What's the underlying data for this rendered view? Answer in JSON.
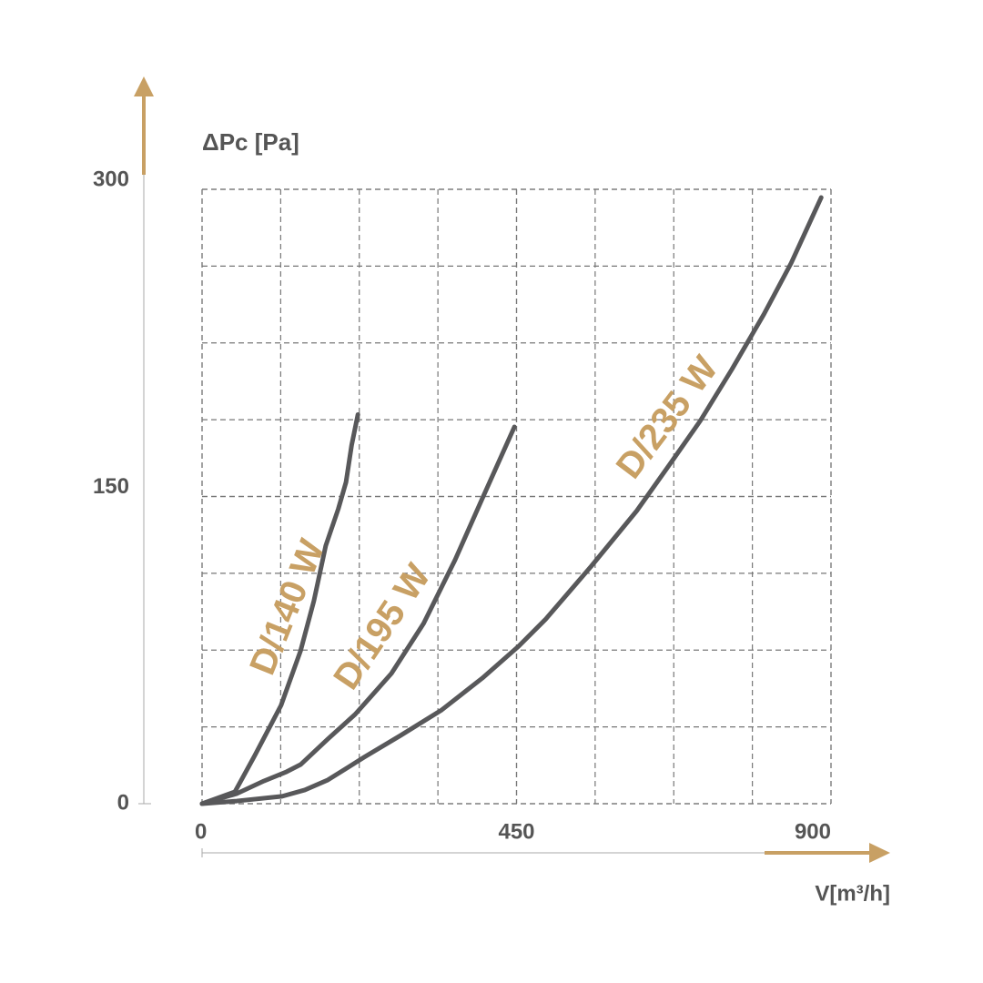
{
  "chart_data": {
    "type": "line",
    "y_label": "ΔPc [Pa]",
    "x_label": "V[m³/h]",
    "xlim": [
      0,
      900
    ],
    "xticks": [
      0,
      450,
      900
    ],
    "ylim": [
      0,
      300
    ],
    "yticks": [
      0,
      150,
      300
    ],
    "grid": true,
    "series": [
      {
        "name": "D/140 W",
        "color": "#58585a",
        "x": [
          0,
          47,
          75.5,
          113,
          141,
          160,
          177,
          195,
          206,
          214,
          223
        ],
        "values": [
          0,
          5.8,
          23.6,
          48,
          74.7,
          99,
          126,
          144,
          157,
          175,
          190
        ]
      },
      {
        "name": "D/195 W",
        "color": "#58585a",
        "x": [
          0,
          49.5,
          88.6,
          121,
          141,
          180,
          219,
          271,
          317,
          362,
          401,
          447
        ],
        "values": [
          0,
          4.9,
          11.1,
          15.6,
          19.1,
          31.6,
          43.6,
          63.6,
          88,
          119,
          149,
          184
        ]
      },
      {
        "name": "D/235 W",
        "color": "#58585a",
        "x": [
          0,
          49.5,
          114.6,
          147,
          180,
          232,
          284,
          343,
          401,
          453,
          492,
          557,
          622,
          674,
          713,
          758,
          804,
          843,
          886
        ],
        "values": [
          0,
          1.3,
          3.6,
          6.7,
          11.6,
          22.7,
          33.3,
          45.8,
          61.3,
          76.9,
          90.2,
          116,
          143,
          168,
          187,
          212,
          239,
          264,
          296
        ]
      }
    ]
  }
}
